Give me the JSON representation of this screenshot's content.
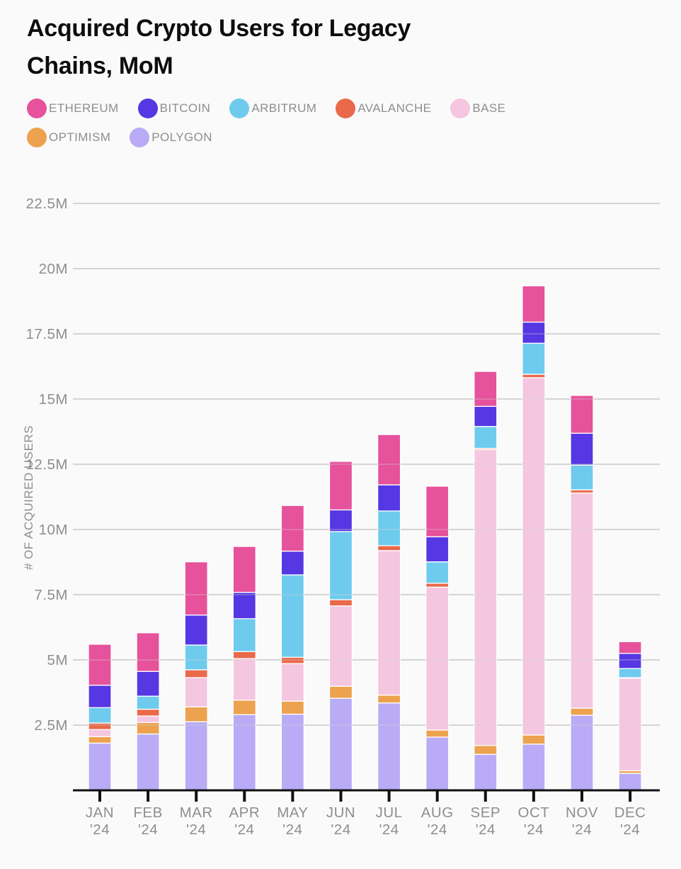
{
  "chart_data": {
    "type": "bar",
    "stacked": true,
    "title": "Acquired Crypto Users for Legacy Chains, MoM",
    "ylabel": "# OF ACQUIRED USERS",
    "unit": "M",
    "ylim": [
      0,
      22.5
    ],
    "yticks": [
      2.5,
      5,
      7.5,
      10,
      12.5,
      15,
      17.5,
      20,
      22.5
    ],
    "ytick_labels": [
      "2.5M",
      "5M",
      "7.5M",
      "10M",
      "12.5M",
      "15M",
      "17.5M",
      "20M",
      "22.5M"
    ],
    "grid": true,
    "legend_position": "top",
    "legend_order": [
      "ETHEREUM",
      "BITCOIN",
      "ARBITRUM",
      "AVALANCHE",
      "BASE",
      "OPTIMISM",
      "POLYGON"
    ],
    "categories": [
      "JAN '24",
      "FEB '24",
      "MAR '24",
      "APR '24",
      "MAY '24",
      "JUN '24",
      "JUL '24",
      "AUG '24",
      "SEP '24",
      "OCT '24",
      "NOV '24",
      "DEC '24"
    ],
    "totals_millions": [
      5.6,
      6.04,
      8.76,
      9.35,
      10.92,
      12.61,
      13.64,
      11.66,
      16.06,
      19.34,
      15.14,
      5.7
    ],
    "series": [
      {
        "name": "POLYGON",
        "color": "#b9abf5",
        "values": [
          1.81,
          2.16,
          2.63,
          2.9,
          2.92,
          3.53,
          3.35,
          2.04,
          1.38,
          1.77,
          2.88,
          0.65
        ]
      },
      {
        "name": "OPTIMISM",
        "color": "#eca24e",
        "values": [
          0.25,
          0.44,
          0.57,
          0.56,
          0.5,
          0.46,
          0.3,
          0.27,
          0.34,
          0.35,
          0.27,
          0.1
        ]
      },
      {
        "name": "BASE",
        "color": "#f5c6e0",
        "values": [
          0.27,
          0.25,
          1.12,
          1.59,
          1.44,
          3.08,
          5.54,
          5.48,
          11.34,
          13.7,
          8.25,
          3.55
        ]
      },
      {
        "name": "AVALANCHE",
        "color": "#e9694a",
        "values": [
          0.25,
          0.26,
          0.3,
          0.27,
          0.24,
          0.24,
          0.19,
          0.15,
          0.05,
          0.13,
          0.12,
          0.02
        ]
      },
      {
        "name": "ARBITRUM",
        "color": "#6ecbed",
        "values": [
          0.59,
          0.5,
          0.95,
          1.26,
          3.16,
          2.61,
          1.33,
          0.82,
          0.84,
          1.19,
          0.95,
          0.35
        ]
      },
      {
        "name": "BITCOIN",
        "color": "#5537e3",
        "values": [
          0.86,
          0.95,
          1.15,
          1.01,
          0.91,
          0.83,
          1.0,
          0.96,
          0.77,
          0.81,
          1.22,
          0.58
        ]
      },
      {
        "name": "ETHEREUM",
        "color": "#e6529b",
        "values": [
          1.57,
          1.48,
          2.04,
          1.76,
          1.75,
          1.86,
          1.93,
          1.94,
          1.34,
          1.39,
          1.45,
          0.45
        ]
      }
    ],
    "colors": {
      "background": "#fafafa",
      "gridline": "#d6d4d4",
      "axis_line": "#111111",
      "tick_label": "#8e8e8e",
      "title_text": "#0d0d0d"
    }
  }
}
